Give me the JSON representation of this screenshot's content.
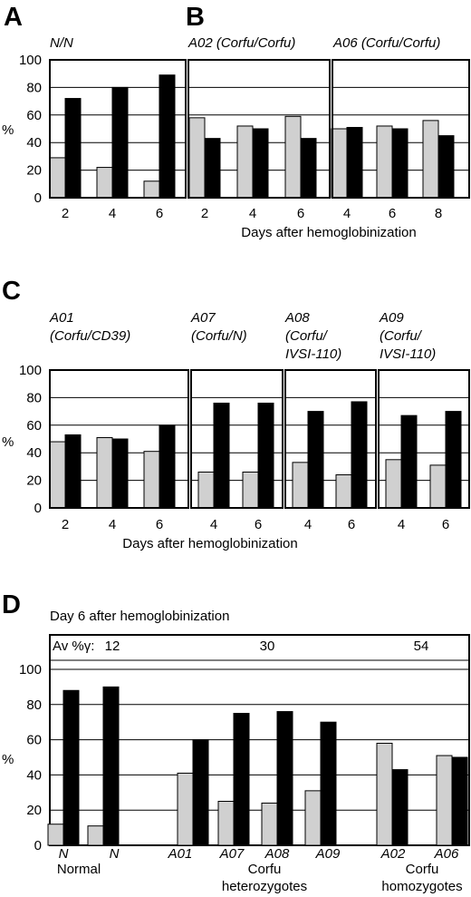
{
  "colors": {
    "gray": "#d0d0d0",
    "black": "#000000",
    "frame": "#000000"
  },
  "chart_data": [
    {
      "panel": "A",
      "type": "bar",
      "ylim": [
        0,
        100
      ],
      "yticks": [
        0,
        20,
        40,
        60,
        80,
        100
      ],
      "ylabel": "%",
      "xlabel": "",
      "grid": true,
      "groups": [
        {
          "title": "N/N",
          "categories": [
            "2",
            "4",
            "6"
          ],
          "gray": [
            29,
            22,
            12
          ],
          "black": [
            72,
            80,
            89
          ]
        }
      ]
    },
    {
      "panel": "B",
      "type": "bar",
      "ylim": [
        0,
        100
      ],
      "yticks": [
        0,
        20,
        40,
        60,
        80,
        100
      ],
      "xlabel": "Days after hemoglobinization",
      "grid": true,
      "groups": [
        {
          "title": "A02 (Corfu/Corfu)",
          "categories": [
            "2",
            "4",
            "6"
          ],
          "gray": [
            58,
            52,
            59
          ],
          "black": [
            43,
            50,
            43
          ]
        },
        {
          "title": "A06 (Corfu/Corfu)",
          "categories": [
            "4",
            "6",
            "8"
          ],
          "gray": [
            50,
            52,
            56
          ],
          "black": [
            51,
            50,
            45
          ]
        }
      ]
    },
    {
      "panel": "C",
      "type": "bar",
      "ylim": [
        0,
        100
      ],
      "yticks": [
        0,
        20,
        40,
        60,
        80,
        100
      ],
      "ylabel": "%",
      "xlabel": "Days after hemoglobinization",
      "grid": true,
      "groups": [
        {
          "title_lines": [
            "A01",
            "(Corfu/CD39)"
          ],
          "categories": [
            "2",
            "4",
            "6"
          ],
          "gray": [
            48,
            51,
            41
          ],
          "black": [
            53,
            50,
            60
          ]
        },
        {
          "title_lines": [
            "A07",
            "(Corfu/N)"
          ],
          "categories": [
            "4",
            "6"
          ],
          "gray": [
            26,
            26
          ],
          "black": [
            76,
            76
          ]
        },
        {
          "title_lines": [
            "A08",
            "(Corfu/",
            "IVSI-110)"
          ],
          "categories": [
            "4",
            "6"
          ],
          "gray": [
            33,
            24
          ],
          "black": [
            70,
            77
          ]
        },
        {
          "title_lines": [
            "A09",
            "(Corfu/",
            "IVSI-110)"
          ],
          "categories": [
            "4",
            "6"
          ],
          "gray": [
            35,
            31
          ],
          "black": [
            67,
            70
          ]
        }
      ]
    },
    {
      "panel": "D",
      "type": "bar",
      "title": "Day 6 after hemoglobinization",
      "ylim": [
        0,
        100
      ],
      "yticks": [
        0,
        20,
        40,
        60,
        80,
        100
      ],
      "ylabel": "%",
      "grid": true,
      "av_label": "Av %γ:",
      "av_values": [
        "12",
        "30",
        "54"
      ],
      "categories": [
        "N",
        "N",
        "A01",
        "A07",
        "A08",
        "A09",
        "A02",
        "A06"
      ],
      "gray": [
        12,
        11,
        41,
        25,
        24,
        31,
        58,
        51
      ],
      "black": [
        88,
        90,
        60,
        75,
        76,
        70,
        43,
        50
      ],
      "group_labels": [
        [
          "Normal"
        ],
        [
          "Corfu",
          "heterozygotes"
        ],
        [
          "Corfu",
          "homozygotes"
        ]
      ]
    }
  ]
}
